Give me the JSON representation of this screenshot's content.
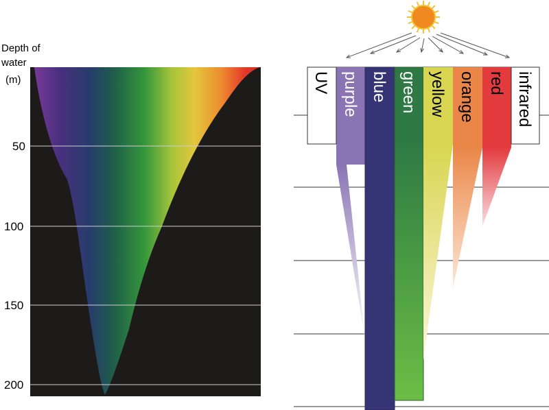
{
  "left_panel": {
    "axis_title_lines": [
      "Depth of",
      "water",
      "(m)"
    ],
    "depth_ticks": [
      "50",
      "100",
      "150",
      "200"
    ]
  },
  "right_panel": {
    "bands": [
      {
        "label": "UV",
        "color": "#ffffff",
        "text_color": "#000000"
      },
      {
        "label": "purple",
        "color": "#8a74b4",
        "text_color": "#ffffff"
      },
      {
        "label": "blue",
        "color": "#353576",
        "text_color": "#ffffff"
      },
      {
        "label": "green",
        "color": "#2f7a44",
        "text_color": "#ffffff"
      },
      {
        "label": "yellow",
        "color": "#d8d650",
        "text_color": "#000000"
      },
      {
        "label": "orange",
        "color": "#ea8748",
        "text_color": "#000000"
      },
      {
        "label": "red",
        "color": "#e33a3e",
        "text_color": "#000000"
      },
      {
        "label": "infrared",
        "color": "#ffffff",
        "text_color": "#000000"
      }
    ]
  },
  "colors": {
    "water": "#1d1b19",
    "sun": "#f08a20",
    "sun_rays": "#f2c12e",
    "gridline": "#cfcfcf"
  }
}
